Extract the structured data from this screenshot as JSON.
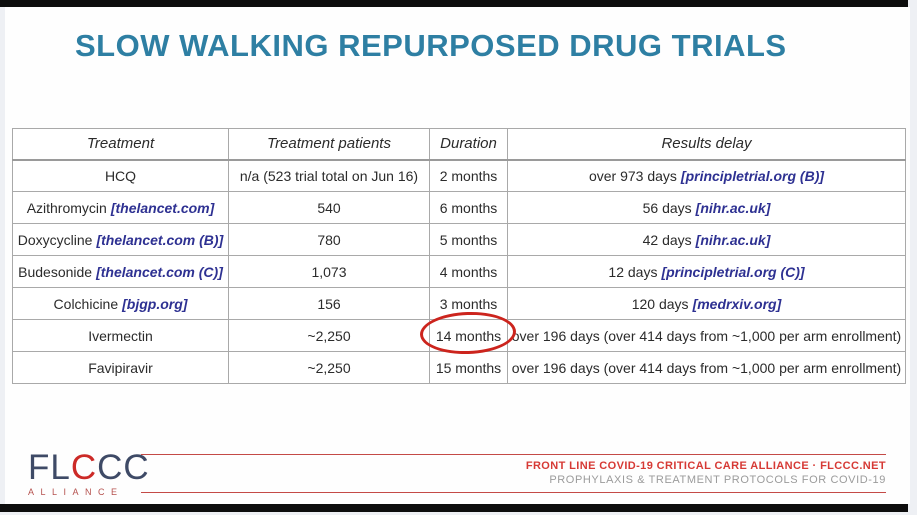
{
  "title": "SLOW WALKING REPURPOSED DRUG TRIALS",
  "colors": {
    "title_teal": "#2e7fa3",
    "link_blue": "#2e3192",
    "circle_red": "#cc241d",
    "footer_red": "#d63a35",
    "logo_navy": "#3e4a66",
    "footer_gray": "#9b9b9b",
    "table_border": "#a9a9a9"
  },
  "table": {
    "headers": {
      "treatment": "Treatment",
      "patients": "Treatment patients",
      "duration": "Duration",
      "delay": "Results delay"
    },
    "rows": [
      {
        "treatment": "HCQ",
        "treatment_link": "",
        "patients": "n/a (523 trial total on Jun 16)",
        "duration": "2 months",
        "delay": "over 973 days",
        "delay_link": "[principletrial.org (B)]"
      },
      {
        "treatment": "Azithromycin",
        "treatment_link": "[thelancet.com]",
        "patients": "540",
        "duration": "6 months",
        "delay": "56 days",
        "delay_link": "[nihr.ac.uk]"
      },
      {
        "treatment": "Doxycycline",
        "treatment_link": "[thelancet.com (B)]",
        "patients": "780",
        "duration": "5 months",
        "delay": "42 days",
        "delay_link": "[nihr.ac.uk]"
      },
      {
        "treatment": "Budesonide",
        "treatment_link": "[thelancet.com (C)]",
        "patients": "1,073",
        "duration": "4 months",
        "delay": "12 days",
        "delay_link": "[principletrial.org (C)]"
      },
      {
        "treatment": "Colchicine",
        "treatment_link": "[bjgp.org]",
        "patients": "156",
        "duration": "3 months",
        "delay": "120 days",
        "delay_link": "[medrxiv.org]"
      },
      {
        "treatment": "Ivermectin",
        "treatment_link": "",
        "patients": "~2,250",
        "duration": "14 months",
        "delay": "over 196 days (over 414 days from ~1,000 per arm enrollment)",
        "delay_link": ""
      },
      {
        "treatment": "Favipiravir",
        "treatment_link": "",
        "patients": "~2,250",
        "duration": "15 months",
        "delay": "over 196 days (over 414 days from ~1,000 per arm enrollment)",
        "delay_link": ""
      }
    ]
  },
  "annotation": {
    "circled_value": "14 months"
  },
  "footer": {
    "logo_part1": "FL",
    "logo_part2": "C",
    "logo_part3": "CC",
    "logo_sub": "ALLIANCE",
    "line1_text": "FRONT LINE COVID-19 CRITICAL CARE ALLIANCE · ",
    "line1_site": "FLCCC.NET",
    "line2": "PROPHYLAXIS & TREATMENT PROTOCOLS FOR COVID-19"
  }
}
